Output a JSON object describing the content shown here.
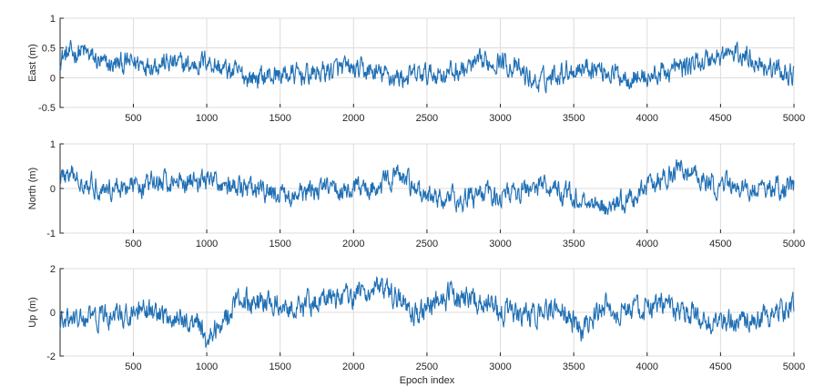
{
  "chart_data": [
    {
      "type": "line",
      "ylabel": "East (m)",
      "xlabel": "",
      "xlim": [
        1,
        5000
      ],
      "ylim": [
        -0.5,
        1
      ],
      "xticks": [
        500,
        1000,
        1500,
        2000,
        2500,
        3000,
        3500,
        4000,
        4500,
        5000
      ],
      "yticks": [
        -0.5,
        0,
        0.5,
        1
      ],
      "ytick_labels": [
        "-0.5",
        "0",
        "0.5",
        "1"
      ],
      "grid": true,
      "color": "#1f6fb4",
      "noise_amplitude": 0.15,
      "series": [
        {
          "x": [
            1,
            150,
            300,
            500,
            700,
            900,
            1000,
            1100,
            1300,
            1500,
            1700,
            1900,
            2100,
            2300,
            2500,
            2700,
            2900,
            3000,
            3100,
            3250,
            3400,
            3600,
            3800,
            4000,
            4200,
            4400,
            4550,
            4700,
            4850,
            5000
          ],
          "y": [
            0.35,
            0.45,
            0.2,
            0.25,
            0.25,
            0.2,
            0.3,
            0.15,
            0.0,
            0.05,
            0.05,
            0.15,
            0.1,
            0.0,
            0.05,
            0.1,
            0.25,
            0.3,
            0.15,
            -0.1,
            0.1,
            0.2,
            0.05,
            0.0,
            0.15,
            0.3,
            0.4,
            0.35,
            0.15,
            0.05
          ]
        }
      ]
    },
    {
      "type": "line",
      "ylabel": "North (m)",
      "xlabel": "",
      "xlim": [
        1,
        5000
      ],
      "ylim": [
        -1,
        1
      ],
      "xticks": [
        500,
        1000,
        1500,
        2000,
        2500,
        3000,
        3500,
        4000,
        4500,
        5000
      ],
      "yticks": [
        -1,
        0,
        1
      ],
      "ytick_labels": [
        "-1",
        "0",
        "1"
      ],
      "grid": true,
      "color": "#1f6fb4",
      "noise_amplitude": 0.2,
      "series": [
        {
          "x": [
            1,
            150,
            300,
            500,
            700,
            900,
            1100,
            1200,
            1400,
            1600,
            1800,
            2000,
            2200,
            2300,
            2500,
            2700,
            2900,
            3100,
            3300,
            3500,
            3700,
            3900,
            4100,
            4250,
            4400,
            4600,
            4800,
            5000
          ],
          "y": [
            0.3,
            0.2,
            0.0,
            0.05,
            0.15,
            0.2,
            0.15,
            0.0,
            -0.1,
            -0.2,
            0.0,
            -0.05,
            0.1,
            0.3,
            -0.2,
            -0.25,
            -0.15,
            -0.1,
            0.1,
            -0.2,
            -0.4,
            -0.25,
            0.2,
            0.45,
            0.15,
            0.0,
            0.0,
            0.05
          ]
        }
      ]
    },
    {
      "type": "line",
      "ylabel": "Up (m)",
      "xlabel": "Epoch index",
      "xlim": [
        1,
        5000
      ],
      "ylim": [
        -2,
        2
      ],
      "xticks": [
        500,
        1000,
        1500,
        2000,
        2500,
        3000,
        3500,
        4000,
        4500,
        5000
      ],
      "yticks": [
        -2,
        0,
        2
      ],
      "ytick_labels": [
        "-2",
        "0",
        "2"
      ],
      "grid": true,
      "color": "#1f6fb4",
      "noise_amplitude": 0.45,
      "series": [
        {
          "x": [
            1,
            200,
            400,
            600,
            800,
            950,
            1000,
            1100,
            1200,
            1400,
            1600,
            1800,
            2000,
            2150,
            2300,
            2400,
            2600,
            2800,
            3000,
            3200,
            3400,
            3550,
            3700,
            3900,
            4100,
            4300,
            4500,
            4700,
            4900,
            5000
          ],
          "y": [
            -0.5,
            -0.3,
            -0.2,
            0.0,
            -0.3,
            -0.5,
            -1.2,
            -0.5,
            0.6,
            0.4,
            0.3,
            0.6,
            0.8,
            1.1,
            0.6,
            -0.2,
            0.7,
            0.7,
            0.1,
            -0.3,
            0.3,
            -0.8,
            0.2,
            0.0,
            0.3,
            -0.1,
            -0.5,
            -0.4,
            0.1,
            0.4
          ]
        }
      ]
    }
  ]
}
